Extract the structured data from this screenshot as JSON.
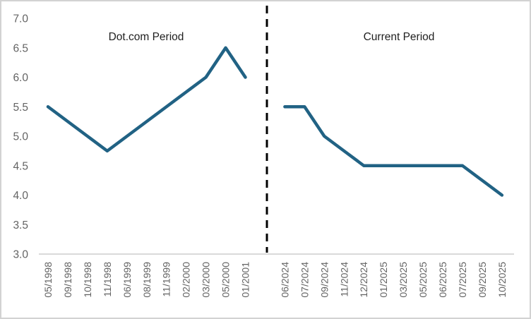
{
  "chart_data": {
    "type": "line",
    "title": "",
    "xlabel": "",
    "ylabel": "",
    "ylim": [
      3.0,
      7.0
    ],
    "ytick_labels": [
      "7.0",
      "6.5",
      "6.0",
      "5.5",
      "5.0",
      "4.5",
      "4.0",
      "3.5",
      "3.0"
    ],
    "grid": false,
    "legend": "none",
    "line_color": "#216284",
    "axis_line_color": "#d9d9d9",
    "tick_label_color": "#636363",
    "annotation_color": "#1f1f1f",
    "divider": {
      "style": "dashed",
      "color": "#000000"
    },
    "annotations": [
      {
        "text": "Dot.com Period"
      },
      {
        "text": "Current Period"
      }
    ],
    "series": [
      {
        "name": "Dot.com Period",
        "categories": [
          "05/1998",
          "09/1998",
          "10/1998",
          "11/1998",
          "06/1999",
          "08/1999",
          "11/1999",
          "02/2000",
          "03/2000",
          "05/2000",
          "01/2001"
        ],
        "values": [
          5.5,
          5.25,
          5.0,
          4.75,
          5.0,
          5.25,
          5.5,
          5.75,
          6.0,
          6.5,
          6.0
        ]
      },
      {
        "name": "Current Period",
        "categories": [
          "06/2024",
          "07/2024",
          "09/2024",
          "11/2024",
          "12/2024",
          "01/2025",
          "03/2025",
          "05/2025",
          "06/2025",
          "07/2025",
          "09/2025",
          "10/2025"
        ],
        "values": [
          5.5,
          5.5,
          5.0,
          4.75,
          4.5,
          4.5,
          4.5,
          4.5,
          4.5,
          4.5,
          4.25,
          4.0
        ]
      }
    ]
  }
}
